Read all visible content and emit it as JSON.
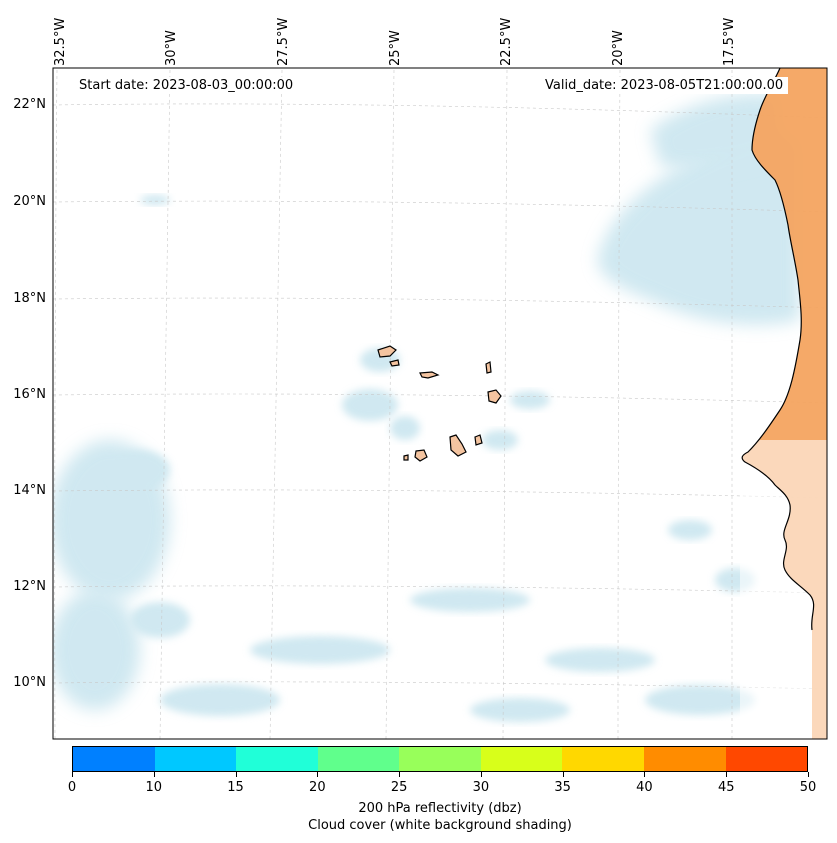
{
  "map": {
    "title_left": "Start date: 2023-08-03_00:00:00",
    "title_right": "Valid_date: 2023-08-05T21:00:00.00",
    "lon_labels": [
      "32.5°W",
      "30°W",
      "27.5°W",
      "25°W",
      "22.5°W",
      "20°W",
      "17.5°W"
    ],
    "lat_labels": [
      "22°N",
      "20°N",
      "18°N",
      "16°N",
      "14°N",
      "12°N",
      "10°N"
    ],
    "region": "Cabo Verde and West African coast",
    "land_color": "#f4a460",
    "cloud_color": "#a9d6e5"
  },
  "colorbar": {
    "ticks": [
      "0",
      "10",
      "15",
      "20",
      "25",
      "30",
      "35",
      "40",
      "45",
      "50"
    ],
    "colors": [
      "#0080ff",
      "#00c8ff",
      "#20ffd8",
      "#60ff8c",
      "#98ff5a",
      "#d8ff1a",
      "#ffd800",
      "#ff8c00",
      "#ff4800"
    ],
    "label_line1": "200 hPa reflectivity (dbz)",
    "label_line2": "Cloud cover (white background shading)"
  }
}
